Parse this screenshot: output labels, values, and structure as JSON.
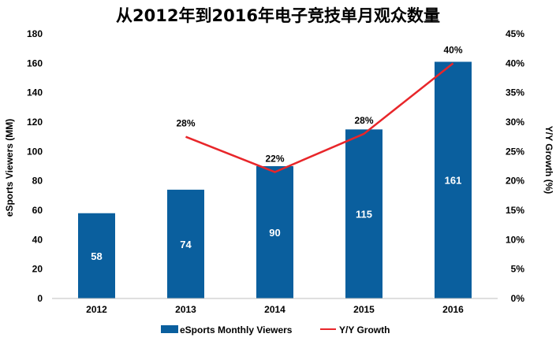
{
  "chart_data": {
    "type": "bar",
    "title": "从2012年到2016年电子竞技单月观众数量",
    "categories": [
      "2012",
      "2013",
      "2014",
      "2015",
      "2016"
    ],
    "series": [
      {
        "name": "eSports Monthly Viewers",
        "type": "bar",
        "axis": "left",
        "color": "#0a5f9e",
        "values": [
          58,
          74,
          90,
          115,
          161
        ],
        "labels": [
          "58",
          "74",
          "90",
          "115",
          "161"
        ]
      },
      {
        "name": "Y/Y Growth",
        "type": "line",
        "axis": "right",
        "color": "#e8262a",
        "values": [
          null,
          27.5,
          21.5,
          28,
          40
        ],
        "labels": [
          "",
          "28%",
          "22%",
          "28%",
          "40%"
        ]
      }
    ],
    "ylabel": "eSports Viewers (MM)",
    "ylabel_right": "Y/Y Growth (%)",
    "ylim": [
      0,
      180
    ],
    "yticks": [
      "0",
      "20",
      "40",
      "60",
      "80",
      "100",
      "120",
      "140",
      "160",
      "180"
    ],
    "ylim_right": [
      0,
      45
    ],
    "yticks_right": [
      "0%",
      "5%",
      "10%",
      "15%",
      "20%",
      "25%",
      "30%",
      "35%",
      "40%",
      "45%"
    ],
    "grid": false,
    "legend_position": "bottom"
  }
}
